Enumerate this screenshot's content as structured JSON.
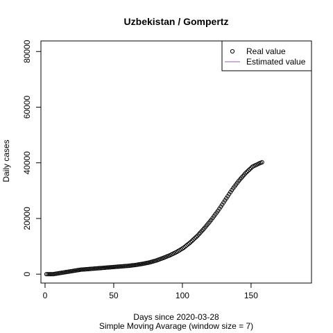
{
  "chart_data": {
    "type": "scatter",
    "title": "Uzbekistan / Gompertz",
    "xlabel": "Days since 2020-03-28",
    "subtitle": "Simple Moving Avarage (window size = 7)",
    "ylabel": "Daily cases",
    "xlim": [
      -3,
      194
    ],
    "ylim": [
      -3200,
      83800
    ],
    "x_ticks": [
      0,
      50,
      100,
      150
    ],
    "y_ticks": [
      0,
      20000,
      40000,
      60000,
      80000
    ],
    "grid": false,
    "legend_position": "top-right",
    "legend": [
      {
        "label": "Real value",
        "marker": "circle",
        "color": "#000000"
      },
      {
        "label": "Estimated value",
        "marker": "line",
        "color": "#9b59b6"
      }
    ],
    "series": [
      {
        "name": "Real value",
        "marker": "open-circle",
        "x": [
          1,
          6,
          11,
          16,
          21,
          26,
          31,
          36,
          41,
          46,
          51,
          56,
          61,
          66,
          71,
          76,
          81,
          86,
          91,
          96,
          101,
          106,
          111,
          116,
          121,
          126,
          131,
          136,
          141,
          146,
          151,
          156,
          158
        ],
        "y": [
          0,
          0,
          400,
          800,
          1200,
          1600,
          1800,
          2000,
          2200,
          2400,
          2600,
          2800,
          3000,
          3300,
          3700,
          4200,
          4900,
          5800,
          6800,
          8000,
          9500,
          11500,
          13800,
          16500,
          19500,
          22800,
          26500,
          30200,
          33500,
          36300,
          38600,
          39800,
          40200
        ]
      }
    ]
  }
}
